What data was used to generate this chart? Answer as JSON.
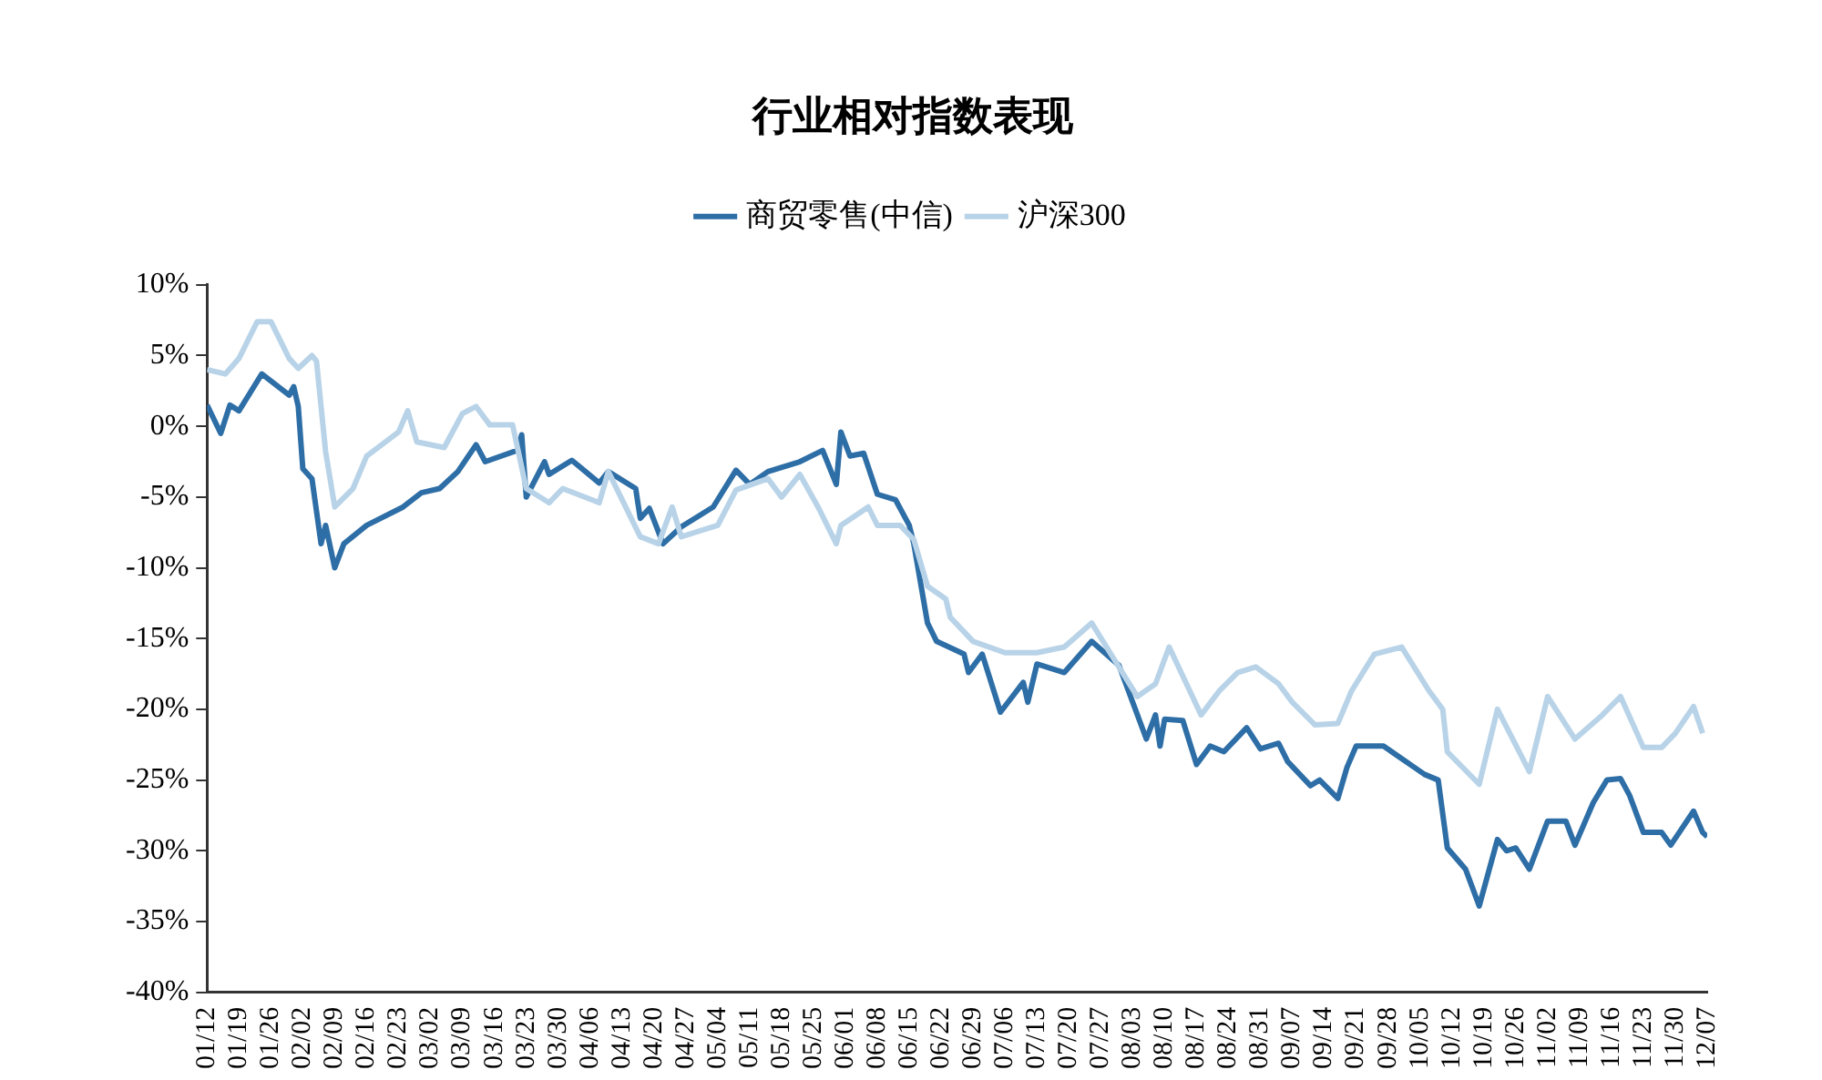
{
  "chart_data": {
    "type": "line",
    "title": "行业相对指数表现",
    "legend": "top",
    "xlim": [
      "--01-12",
      "--12-07"
    ],
    "xticks": [
      {
        "value": "--01-12",
        "label": "01/12"
      },
      {
        "value": "--01-19",
        "label": "01/19"
      },
      {
        "value": "--01-26",
        "label": "01/26"
      },
      {
        "value": "--02-02",
        "label": "02/02"
      },
      {
        "value": "--02-09",
        "label": "02/09"
      },
      {
        "value": "--02-16",
        "label": "02/16"
      },
      {
        "value": "--02-23",
        "label": "02/23"
      },
      {
        "value": "--03-02",
        "label": "03/02"
      },
      {
        "value": "--03-09",
        "label": "03/09"
      },
      {
        "value": "--03-16",
        "label": "03/16"
      },
      {
        "value": "--03-23",
        "label": "03/23"
      },
      {
        "value": "--03-30",
        "label": "03/30"
      },
      {
        "value": "--04-06",
        "label": "04/06"
      },
      {
        "value": "--04-13",
        "label": "04/13"
      },
      {
        "value": "--04-20",
        "label": "04/20"
      },
      {
        "value": "--04-27",
        "label": "04/27"
      },
      {
        "value": "--05-04",
        "label": "05/04"
      },
      {
        "value": "--05-11",
        "label": "05/11"
      },
      {
        "value": "--05-18",
        "label": "05/18"
      },
      {
        "value": "--05-25",
        "label": "05/25"
      },
      {
        "value": "--06-01",
        "label": "06/01"
      },
      {
        "value": "--06-08",
        "label": "06/08"
      },
      {
        "value": "--06-15",
        "label": "06/15"
      },
      {
        "value": "--06-22",
        "label": "06/22"
      },
      {
        "value": "--06-29",
        "label": "06/29"
      },
      {
        "value": "--07-06",
        "label": "07/06"
      },
      {
        "value": "--07-13",
        "label": "07/13"
      },
      {
        "value": "--07-20",
        "label": "07/20"
      },
      {
        "value": "--07-27",
        "label": "07/27"
      },
      {
        "value": "--08-03",
        "label": "08/03"
      },
      {
        "value": "--08-10",
        "label": "08/10"
      },
      {
        "value": "--08-17",
        "label": "08/17"
      },
      {
        "value": "--08-24",
        "label": "08/24"
      },
      {
        "value": "--08-31",
        "label": "08/31"
      },
      {
        "value": "--09-07",
        "label": "09/07"
      },
      {
        "value": "--09-14",
        "label": "09/14"
      },
      {
        "value": "--09-21",
        "label": "09/21"
      },
      {
        "value": "--09-28",
        "label": "09/28"
      },
      {
        "value": "--10-05",
        "label": "10/05"
      },
      {
        "value": "--10-12",
        "label": "10/12"
      },
      {
        "value": "--10-19",
        "label": "10/19"
      },
      {
        "value": "--10-26",
        "label": "10/26"
      },
      {
        "value": "--11-02",
        "label": "11/02"
      },
      {
        "value": "--11-09",
        "label": "11/09"
      },
      {
        "value": "--11-16",
        "label": "11/16"
      },
      {
        "value": "--11-23",
        "label": "11/23"
      },
      {
        "value": "--11-30",
        "label": "11/30"
      },
      {
        "value": "--12-07",
        "label": "12/07"
      }
    ],
    "ylim": [
      -40,
      10
    ],
    "yticks": [
      {
        "value": -40,
        "label": "-40%"
      },
      {
        "value": -35,
        "label": "-35%"
      },
      {
        "value": -30,
        "label": "-30%"
      },
      {
        "value": -25,
        "label": "-25%"
      },
      {
        "value": -20,
        "label": "-20%"
      },
      {
        "value": -15,
        "label": "-15%"
      },
      {
        "value": -10,
        "label": "-10%"
      },
      {
        "value": -5,
        "label": "-5%"
      },
      {
        "value": 0,
        "label": "0%"
      },
      {
        "value": 5,
        "label": "5%"
      },
      {
        "value": 10,
        "label": "10%"
      }
    ],
    "series": [
      {
        "name": "沪深300",
        "color": "#b8d3e8",
        "x": [
          "--01-12",
          "--01-16",
          "--01-19",
          "--01-23",
          "--01-26",
          "--01-30",
          "--02-01",
          "--02-04",
          "--02-05",
          "--02-07",
          "--02-09",
          "--02-13",
          "--02-16",
          "--02-23",
          "--02-25",
          "--02-27",
          "--03-05",
          "--03-09",
          "--03-12",
          "--03-15",
          "--03-20",
          "--03-23",
          "--03-28",
          "--03-31",
          "--04-08",
          "--04-10",
          "--04-17",
          "--04-21",
          "--04-24",
          "--04-26",
          "--05-04",
          "--05-08",
          "--05-15",
          "--05-18",
          "--05-22",
          "--05-26",
          "--05-30",
          "--05-31",
          "--06-06",
          "--06-08",
          "--06-13",
          "--06-16",
          "--06-19",
          "--06-23",
          "--06-24",
          "--06-29",
          "--07-06",
          "--07-13",
          "--07-19",
          "--07-25",
          "--07-30",
          "--08-04",
          "--08-08",
          "--08-11",
          "--08-18",
          "--08-22",
          "--08-26",
          "--08-30",
          "--09-04",
          "--09-07",
          "--09-12",
          "--09-17",
          "--09-20",
          "--09-25",
          "--10-01",
          "--10-07",
          "--10-10",
          "--10-11",
          "--10-18",
          "--10-22",
          "--10-29",
          "--11-02",
          "--11-08",
          "--11-14",
          "--11-18",
          "--11-23",
          "--11-27",
          "--11-30",
          "--12-04",
          "--12-06"
        ],
        "values": [
          4.0,
          3.7,
          4.8,
          7.4,
          7.4,
          4.8,
          4.1,
          5.0,
          4.6,
          -1.8,
          -5.7,
          -4.4,
          -2.1,
          -0.4,
          1.1,
          -1.1,
          -1.5,
          0.9,
          1.4,
          0.1,
          0.1,
          -4.4,
          -5.4,
          -4.4,
          -5.4,
          -3.2,
          -7.8,
          -8.3,
          -5.7,
          -7.8,
          -7.0,
          -4.5,
          -3.7,
          -5.0,
          -3.4,
          -5.7,
          -8.3,
          -7.0,
          -5.7,
          -7.0,
          -7.0,
          -8.0,
          -11.3,
          -12.2,
          -13.5,
          -15.2,
          -16.0,
          -16.0,
          -15.6,
          -13.9,
          -16.5,
          -19.1,
          -18.2,
          -15.6,
          -20.4,
          -18.7,
          -17.4,
          -17.0,
          -18.2,
          -19.5,
          -21.1,
          -21.0,
          -18.7,
          -16.1,
          -15.6,
          -18.7,
          -20.0,
          -23.0,
          -25.3,
          -20.0,
          -24.4,
          -19.1,
          -22.1,
          -20.4,
          -19.1,
          -22.7,
          -22.7,
          -21.7,
          -19.8,
          -21.7
        ]
      },
      {
        "name": "商贸零售(中信)",
        "color": "#2e6ea6",
        "x": [
          "--01-12",
          "--01-15",
          "--01-17",
          "--01-19",
          "--01-24",
          "--01-30",
          "--01-31",
          "--02-01",
          "--02-02",
          "--02-04",
          "--02-06",
          "--02-07",
          "--02-09",
          "--02-11",
          "--02-16",
          "--02-24",
          "--02-28",
          "--03-04",
          "--03-08",
          "--03-12",
          "--03-14",
          "--03-21",
          "--03-22",
          "--03-23",
          "--03-27",
          "--03-28",
          "--04-02",
          "--04-08",
          "--04-10",
          "--04-16",
          "--04-17",
          "--04-19",
          "--04-22",
          "--04-26",
          "--05-03",
          "--05-08",
          "--05-11",
          "--05-15",
          "--05-22",
          "--05-27",
          "--05-30",
          "--05-31",
          "--06-02",
          "--06-05",
          "--06-08",
          "--06-12",
          "--06-15",
          "--06-16",
          "--06-19",
          "--06-21",
          "--06-27",
          "--06-28",
          "--07-01",
          "--07-05",
          "--07-10",
          "--07-11",
          "--07-13",
          "--07-19",
          "--07-25",
          "--07-31",
          "--08-06",
          "--08-08",
          "--08-09",
          "--08-10",
          "--08-14",
          "--08-17",
          "--08-20",
          "--08-23",
          "--08-28",
          "--08-31",
          "--09-04",
          "--09-06",
          "--09-11",
          "--09-13",
          "--09-17",
          "--09-19",
          "--09-21",
          "--09-27",
          "--10-06",
          "--10-09",
          "--10-11",
          "--10-15",
          "--10-18",
          "--10-22",
          "--10-24",
          "--10-26",
          "--10-29",
          "--11-02",
          "--11-06",
          "--11-08",
          "--11-12",
          "--11-15",
          "--11-18",
          "--11-20",
          "--11-23",
          "--11-27",
          "--11-29",
          "--12-04",
          "--12-06",
          "--12-07"
        ],
        "values": [
          1.5,
          -0.5,
          1.5,
          1.1,
          3.7,
          2.2,
          2.8,
          1.4,
          -3.0,
          -3.7,
          -8.3,
          -7.0,
          -10.0,
          -8.3,
          -7.0,
          -5.7,
          -4.7,
          -4.4,
          -3.2,
          -1.3,
          -2.5,
          -1.7,
          -0.6,
          -5.0,
          -2.5,
          -3.4,
          -2.4,
          -4.0,
          -3.2,
          -4.4,
          -6.5,
          -5.8,
          -8.3,
          -7.1,
          -5.7,
          -3.1,
          -4.1,
          -3.2,
          -2.5,
          -1.7,
          -4.1,
          -0.4,
          -2.1,
          -1.9,
          -4.8,
          -5.2,
          -7.0,
          -8.3,
          -13.9,
          -15.2,
          -16.1,
          -17.4,
          -16.1,
          -20.2,
          -18.1,
          -19.5,
          -16.8,
          -17.4,
          -15.2,
          -16.9,
          -22.1,
          -20.4,
          -22.6,
          -20.7,
          -20.8,
          -23.9,
          -22.6,
          -23.0,
          -21.3,
          -22.8,
          -22.4,
          -23.7,
          -25.4,
          -25.0,
          -26.3,
          -24.1,
          -22.6,
          -22.6,
          -24.6,
          -25.0,
          -29.8,
          -31.3,
          -33.9,
          -29.2,
          -30.0,
          -29.8,
          -31.3,
          -27.9,
          -27.9,
          -29.6,
          -26.6,
          -25.0,
          -24.9,
          -26.1,
          -28.7,
          -28.7,
          -29.6,
          -27.2,
          -28.7,
          -29.0
        ]
      }
    ]
  }
}
